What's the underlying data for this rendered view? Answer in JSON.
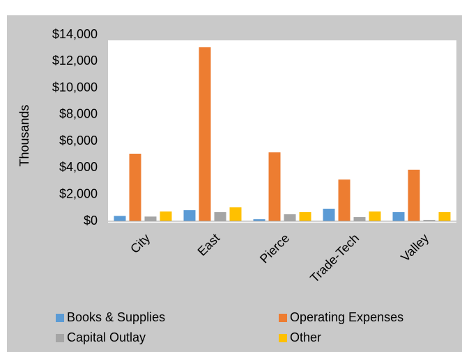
{
  "chart_data": {
    "type": "bar",
    "categories": [
      "City",
      "East",
      "Pierce",
      "Trade-Tech",
      "Valley"
    ],
    "series": [
      {
        "name": "Books & Supplies",
        "color": "#5b9bd5",
        "values": [
          400,
          830,
          150,
          940,
          680
        ]
      },
      {
        "name": "Operating Expenses",
        "color": "#ed7d31",
        "values": [
          5070,
          13060,
          5170,
          3130,
          3870
        ]
      },
      {
        "name": "Capital Outlay",
        "color": "#a5a5a5",
        "values": [
          350,
          680,
          520,
          310,
          100
        ]
      },
      {
        "name": "Other",
        "color": "#ffc000",
        "values": [
          730,
          1040,
          680,
          730,
          680
        ]
      }
    ],
    "y_label": "Thousands",
    "ylim": [
      0,
      14000
    ],
    "yticks": [
      {
        "value": 0,
        "label": "$0"
      },
      {
        "value": 2000,
        "label": "$2,000"
      },
      {
        "value": 4000,
        "label": "$4,000"
      },
      {
        "value": 6000,
        "label": "$6,000"
      },
      {
        "value": 8000,
        "label": "$8,000"
      },
      {
        "value": 10000,
        "label": "$10,000"
      },
      {
        "value": 12000,
        "label": "$12,000"
      },
      {
        "value": 14000,
        "label": "$14,000"
      }
    ],
    "grid": false,
    "legend": "bottom"
  }
}
